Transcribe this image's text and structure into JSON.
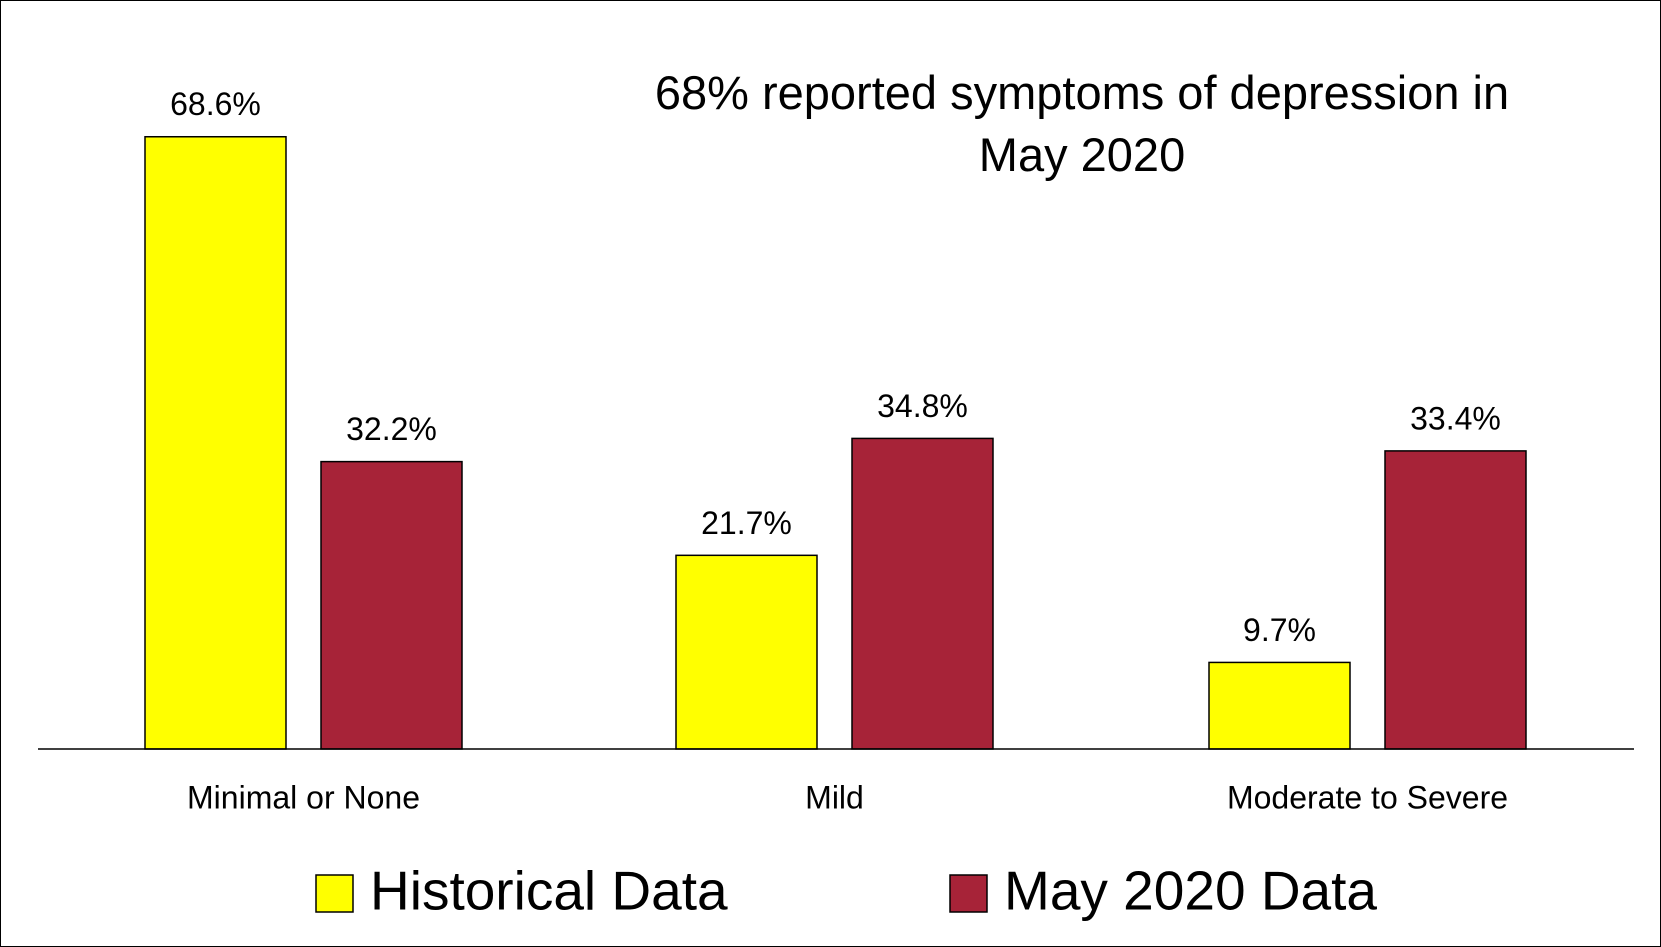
{
  "chart_data": {
    "type": "bar",
    "title": "68% reported symptoms of depression in May 2020",
    "categories": [
      "Minimal or None",
      "Mild",
      "Moderate to Severe"
    ],
    "series": [
      {
        "name": "Historical Data",
        "color": "#ffff00",
        "values": [
          68.6,
          21.7,
          9.7
        ],
        "value_labels": [
          "68.6%",
          "21.7%",
          "9.7%"
        ]
      },
      {
        "name": "May 2020 Data",
        "color": "#a72338",
        "values": [
          32.2,
          34.8,
          33.4
        ],
        "value_labels": [
          "32.2%",
          "34.8%",
          "33.4%"
        ]
      }
    ],
    "legend": "bottom"
  }
}
